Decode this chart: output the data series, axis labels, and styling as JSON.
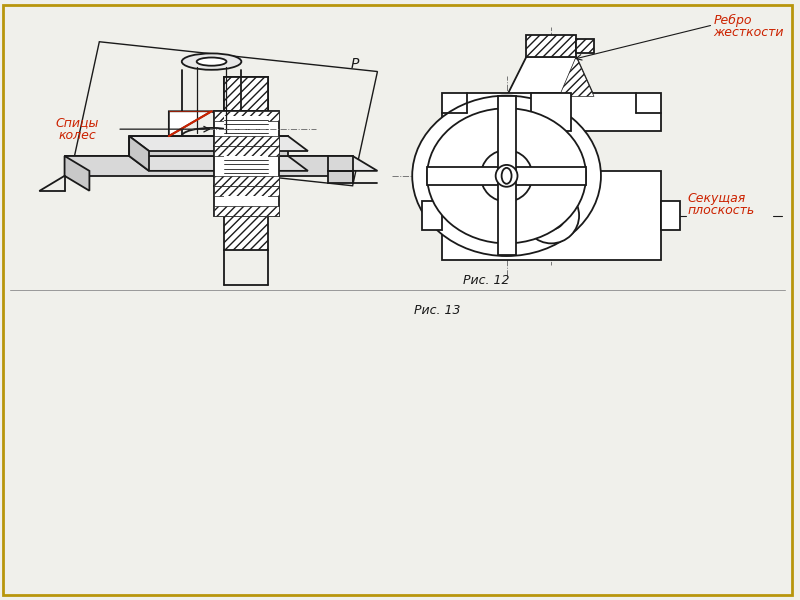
{
  "bg_color": "#f0f0eb",
  "line_color": "#1a1a1a",
  "red_color": "#cc2200",
  "fig12_caption": "Рис. 12",
  "fig13_caption": "Рис. 13",
  "label_rebro1": "Ребро",
  "label_rebro2": "жесткости",
  "label_sekush1": "Секущая",
  "label_sekush2": "плоскость",
  "label_spicy1": "Спицы",
  "label_spicy2": "колес",
  "label_p": "P",
  "border_color": "#b8960c"
}
